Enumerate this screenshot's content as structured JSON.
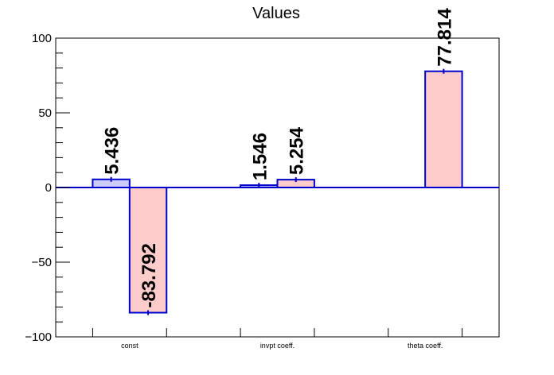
{
  "chart_data": {
    "type": "bar",
    "title": "Values",
    "categories": [
      "const",
      "invpt coeff.",
      "theta coeff."
    ],
    "series": [
      {
        "color": "#ccccff",
        "values": [
          5.436,
          1.546,
          null
        ],
        "labels": [
          "5.436",
          "1.546",
          ""
        ]
      },
      {
        "color": "#ffcccc",
        "values": [
          -83.792,
          5.254,
          77.814
        ],
        "labels": [
          "-83.792",
          "5.254",
          "77.814"
        ]
      }
    ],
    "yticks": [
      -100,
      -50,
      0,
      50,
      100
    ],
    "ytick_labels": [
      "−100",
      "−50",
      "0",
      "50",
      "100"
    ],
    "ylim": [
      -100,
      100
    ],
    "bar_edge_color": "#0000cc",
    "zero_line_color": "#0000cc",
    "grid": false
  }
}
